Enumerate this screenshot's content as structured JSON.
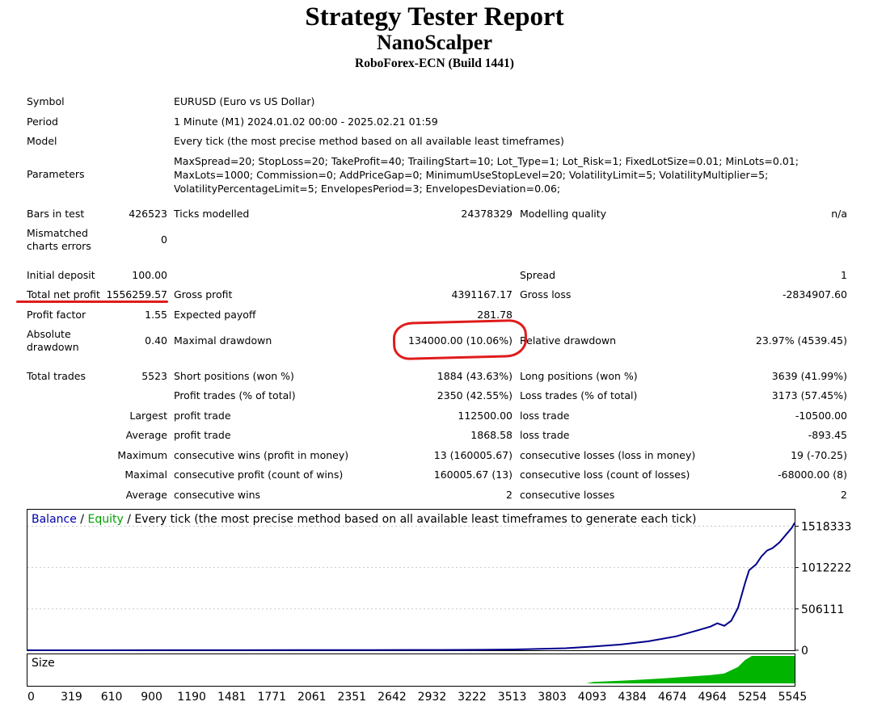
{
  "header": {
    "title": "Strategy Tester Report",
    "strategy": "NanoScalper",
    "broker": "RoboForex-ECN (Build 1441)"
  },
  "info": {
    "symbol_label": "Symbol",
    "symbol_value": "EURUSD (Euro vs US Dollar)",
    "period_label": "Period",
    "period_value": "1 Minute (M1) 2024.01.02 00:00 - 2025.02.21 01:59",
    "model_label": "Model",
    "model_value": "Every tick (the most precise method based on all available least timeframes)",
    "parameters_label": "Parameters",
    "parameters_value": "MaxSpread=20; StopLoss=20; TakeProfit=40; TrailingStart=10; Lot_Type=1; Lot_Risk=1; FixedLotSize=0.01; MinLots=0.01; MaxLots=1000; Commission=0; AddPriceGap=0; MinimumUseStopLevel=20; VolatilityLimit=5; VolatilityMultiplier=5; VolatilityPercentageLimit=5; EnvelopesPeriod=3; EnvelopesDeviation=0.06;"
  },
  "stats": {
    "bars_label": "Bars in test",
    "bars_value": "426523",
    "ticks_label": "Ticks modelled",
    "ticks_value": "24378329",
    "quality_label": "Modelling quality",
    "quality_value": "n/a",
    "mismatch_label_1": "Mismatched",
    "mismatch_label_2": "charts errors",
    "mismatch_value": "0",
    "deposit_label": "Initial deposit",
    "deposit_value": "100.00",
    "spread_label": "Spread",
    "spread_value": "1",
    "net_profit_label": "Total net profit",
    "net_profit_value": "1556259.57",
    "gross_profit_label": "Gross profit",
    "gross_profit_value": "4391167.17",
    "gross_loss_label": "Gross loss",
    "gross_loss_value": "-2834907.60",
    "profit_factor_label": "Profit factor",
    "profit_factor_value": "1.55",
    "expected_payoff_label": "Expected payoff",
    "expected_payoff_value": "281.78",
    "abs_dd_label_1": "Absolute",
    "abs_dd_label_2": "drawdown",
    "abs_dd_value": "0.40",
    "max_dd_label": "Maximal drawdown",
    "max_dd_value": "134000.00 (10.06%)",
    "rel_dd_label": "Relative drawdown",
    "rel_dd_value": "23.97% (4539.45)",
    "total_trades_label": "Total trades",
    "total_trades_value": "5523",
    "short_label": "Short positions (won %)",
    "short_value": "1884 (43.63%)",
    "long_label": "Long positions (won %)",
    "long_value": "3639 (41.99%)",
    "profit_trades_label": "Profit trades (% of total)",
    "profit_trades_value": "2350 (42.55%)",
    "loss_trades_label": "Loss trades (% of total)",
    "loss_trades_value": "3173 (57.45%)",
    "largest_label": "Largest",
    "largest_profit_label": "profit trade",
    "largest_profit_value": "112500.00",
    "largest_loss_label": "loss trade",
    "largest_loss_value": "-10500.00",
    "average_label": "Average",
    "average_profit_label": "profit trade",
    "average_profit_value": "1868.58",
    "average_loss_label": "loss trade",
    "average_loss_value": "-893.45",
    "maximum_label": "Maximum",
    "max_cons_wins_label": "consecutive wins (profit in money)",
    "max_cons_wins_value": "13 (160005.67)",
    "max_cons_losses_label": "consecutive losses (loss in money)",
    "max_cons_losses_value": "19 (-70.25)",
    "maximal_label": "Maximal",
    "maximal_cons_profit_label": "consecutive profit (count of wins)",
    "maximal_cons_profit_value": "160005.67 (13)",
    "maximal_cons_loss_label": "consecutive loss (count of losses)",
    "maximal_cons_loss_value": "-68000.00 (8)",
    "average2_label": "Average",
    "avg_cons_wins_label": "consecutive wins",
    "avg_cons_wins_value": "2",
    "avg_cons_losses_label": "consecutive losses",
    "avg_cons_losses_value": "2"
  },
  "chart_data": {
    "type": "line",
    "legend": {
      "balance": "Balance",
      "sep1": " / ",
      "equity": "Equity",
      "sep2": " / ",
      "rest": "Every tick (the most precise method based on all available least timeframes to generate each tick)"
    },
    "y_ticks": [
      "1518333",
      "1012222",
      "506111",
      "0"
    ],
    "y_tick_values": [
      1518333,
      1012222,
      506111,
      0
    ],
    "ylim": [
      0,
      1720000
    ],
    "x_ticks": [
      "0",
      "319",
      "610",
      "900",
      "1190",
      "1481",
      "1771",
      "2061",
      "2351",
      "2642",
      "2932",
      "3222",
      "3513",
      "3803",
      "4093",
      "4384",
      "4674",
      "4964",
      "5254",
      "5545"
    ],
    "xlim": [
      0,
      5560
    ],
    "colors": {
      "balance": "#00008b",
      "equity": "#00a000",
      "size": "#00b400"
    },
    "series": [
      {
        "name": "Balance",
        "x": [
          0,
          500,
          1000,
          1500,
          2000,
          2500,
          3000,
          3300,
          3600,
          3900,
          4100,
          4300,
          4500,
          4700,
          4850,
          4950,
          5000,
          5050,
          5100,
          5150,
          5200,
          5230,
          5280,
          5320,
          5360,
          5400,
          5450,
          5500,
          5540,
          5560
        ],
        "y": [
          100,
          300,
          600,
          1000,
          1500,
          2500,
          4000,
          6000,
          12000,
          25000,
          45000,
          70000,
          110000,
          170000,
          240000,
          290000,
          330000,
          300000,
          360000,
          520000,
          820000,
          980000,
          1050000,
          1150000,
          1220000,
          1250000,
          1320000,
          1420000,
          1500000,
          1560000
        ]
      }
    ],
    "size_panel": {
      "label": "Size",
      "x": [
        0,
        4050,
        4100,
        4400,
        4600,
        4800,
        4950,
        5050,
        5150,
        5200,
        5250,
        5560
      ],
      "level": [
        0,
        0,
        0.05,
        0.12,
        0.18,
        0.25,
        0.3,
        0.36,
        0.6,
        0.85,
        1.0,
        1.0
      ]
    }
  }
}
